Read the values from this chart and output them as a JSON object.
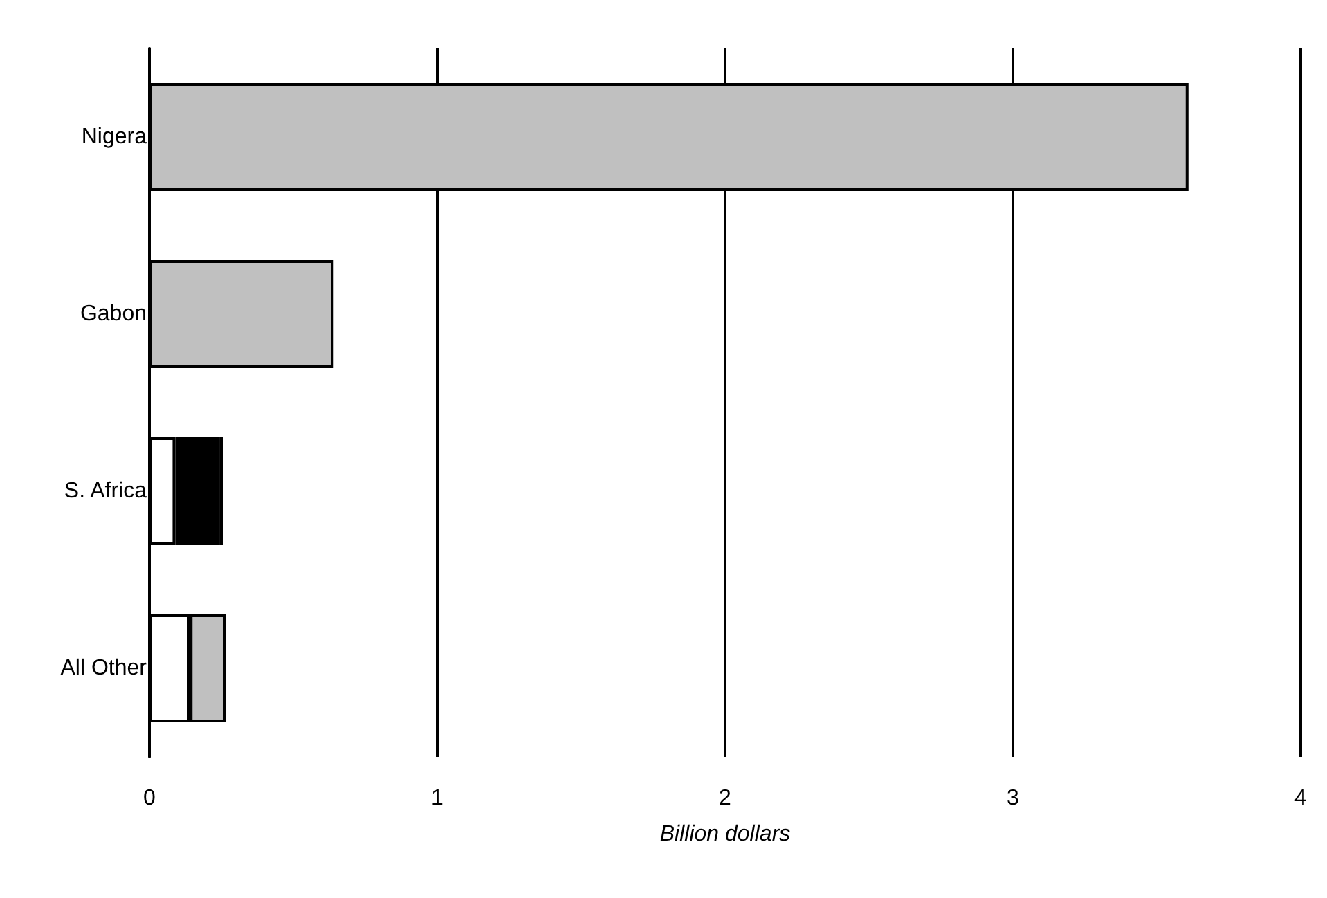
{
  "chart_data": {
    "type": "bar",
    "orientation": "horizontal",
    "stacked": true,
    "xlabel": "Billion dollars",
    "categories": [
      "Nigera",
      "Gabon",
      "S. Africa",
      "All Other"
    ],
    "series": [
      {
        "colors": [
          "#c0c0c0",
          "#c0c0c0",
          "#ffffff",
          "#ffffff"
        ],
        "values": [
          3.61,
          0.64,
          0.09,
          0.14
        ]
      },
      {
        "colors": [
          "#000000",
          "#000000",
          "#000000",
          "#c0c0c0"
        ],
        "values": [
          null,
          null,
          0.155,
          0.125
        ]
      },
      {
        "colors": [
          "#ffffff",
          "#ffffff",
          "#ffffff",
          "#ffffff"
        ],
        "values": [
          null,
          null,
          0.01,
          null
        ]
      }
    ],
    "xlim": [
      0,
      4
    ],
    "xticks": [
      0,
      1,
      2,
      3,
      4
    ],
    "grid": "x"
  }
}
